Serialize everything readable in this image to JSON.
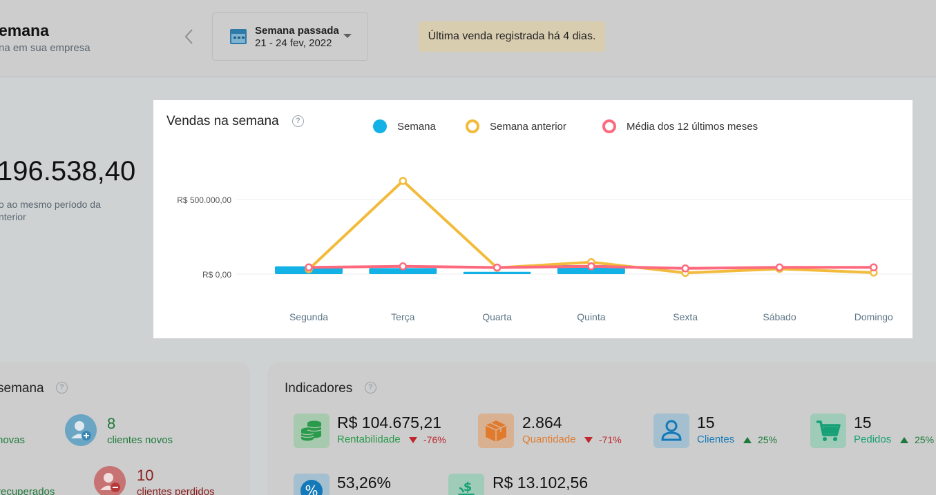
{
  "header": {
    "title": "emana",
    "subtitle": "na em sua empresa",
    "period_label": "Semana passada",
    "period_range": "21 - 24 fev, 2022",
    "last_sale": "Última venda registrada há 4 dias."
  },
  "total": {
    "value": "196.538,40",
    "note_line1": "o ao mesmo período da",
    "note_line2": "nterior"
  },
  "chart_card": {
    "title": "Vendas na semana",
    "help": "?",
    "legend": [
      {
        "label": "Semana",
        "color": "#12b2e6",
        "style": "filled"
      },
      {
        "label": "Semana anterior",
        "color": "#f2bb3c",
        "style": "ring"
      },
      {
        "label": "Média dos 12 últimos meses",
        "color": "#fd6a7e",
        "style": "ring"
      }
    ]
  },
  "chart_data": {
    "type": "bar",
    "categories": [
      "Segunda",
      "Terça",
      "Quarta",
      "Quinta",
      "Sexta",
      "Sábado",
      "Domingo"
    ],
    "y_ticks": [
      "R$ 500.000,00",
      "R$ 0,00"
    ],
    "ylim": [
      0,
      500000
    ],
    "series": [
      {
        "name": "Semana",
        "kind": "bar",
        "color": "#12b2e6",
        "values": [
          52000,
          40000,
          15000,
          60000,
          0,
          0,
          0
        ]
      },
      {
        "name": "Semana anterior",
        "kind": "line",
        "color": "#f2bb3c",
        "values": [
          32000,
          625000,
          42000,
          80000,
          8000,
          35000,
          10000
        ]
      },
      {
        "name": "Média dos 12 últimos meses",
        "kind": "line",
        "color": "#fd6a7e",
        "values": [
          45000,
          52000,
          44000,
          52000,
          38000,
          45000,
          45000
        ]
      }
    ]
  },
  "customers_card": {
    "title": "semana",
    "help": "?",
    "left_new_label": "novas",
    "new_count": "8",
    "new_label": "clientes novos",
    "left_recovered_label": "recuperados",
    "lost_count": "10",
    "lost_label": "clientes perdidos"
  },
  "indicators": {
    "title": "Indicadores",
    "help": "?",
    "items": [
      {
        "icon": "coins-icon",
        "value": "R$ 104.675,21",
        "label": "Rentabilidade",
        "delta": "-76%",
        "dir": "down",
        "color": "#2a9a4b",
        "bg": "#a7c9ae"
      },
      {
        "icon": "box-icon",
        "value": "2.864",
        "label": "Quantidade",
        "delta": "-71%",
        "dir": "down",
        "color": "#e07b2e",
        "bg": "#d9b191"
      },
      {
        "icon": "person-icon",
        "value": "15",
        "label": "Clientes",
        "delta": "25%",
        "dir": "up",
        "color": "#1479b8",
        "bg": "#a3bfd0"
      },
      {
        "icon": "cart-icon",
        "value": "15",
        "label": "Pedidos",
        "delta": "25%",
        "dir": "up",
        "color": "#16a075",
        "bg": "#9fcbb9"
      },
      {
        "icon": "percent-icon",
        "value": "53,26%"
      },
      {
        "icon": "money-plant-icon",
        "value": "R$ 13.102,56"
      }
    ]
  }
}
